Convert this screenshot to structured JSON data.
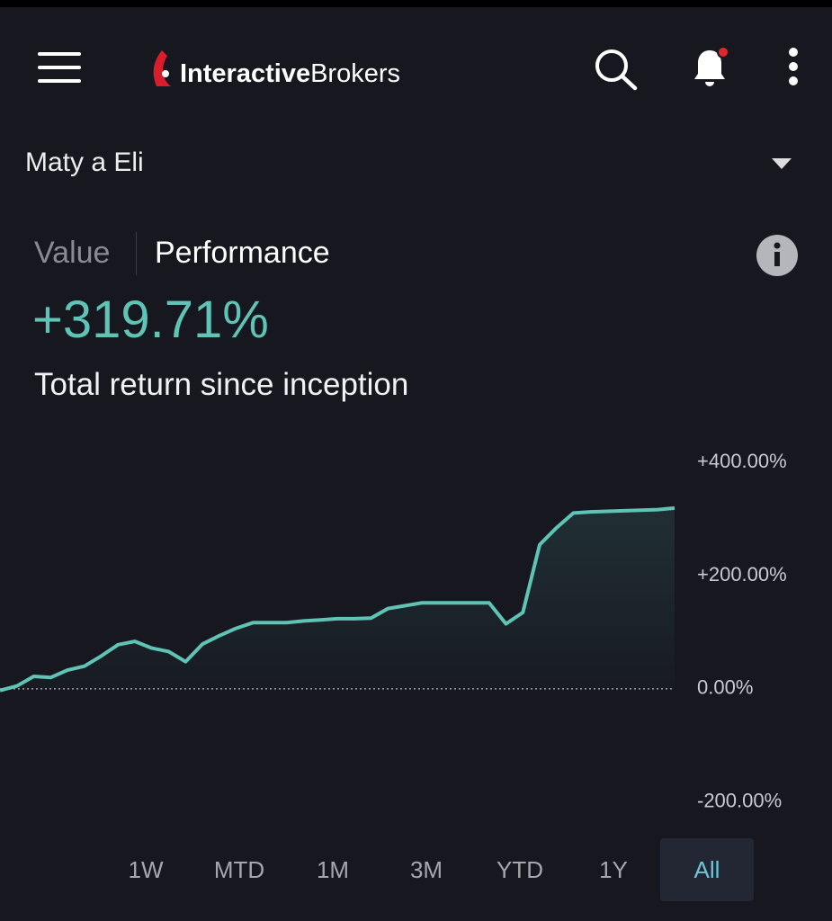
{
  "header": {
    "logo_bold": "Interactive",
    "logo_light": "Brokers"
  },
  "account": "Maty a Eli",
  "tabs": [
    "Value",
    "Performance"
  ],
  "selected_tab": 1,
  "headline_value": "+319.71%",
  "headline_caption": "Total return since inception",
  "chart_data": {
    "type": "line",
    "categories": [
      null,
      null,
      null,
      null,
      null,
      null,
      null,
      null,
      null,
      null,
      null,
      null,
      null,
      null,
      null,
      null,
      null,
      null,
      null,
      null,
      null,
      null,
      null,
      null,
      null,
      null,
      null,
      null,
      null,
      null,
      null,
      null,
      null,
      null,
      null,
      null,
      null,
      null,
      null,
      null,
      null
    ],
    "values": [
      -3,
      5,
      22,
      20,
      33,
      40,
      58,
      78,
      84,
      72,
      66,
      48,
      79,
      94,
      107,
      117,
      117,
      117,
      120,
      122,
      124,
      124,
      125,
      142,
      147,
      152,
      152,
      152,
      152,
      152,
      115,
      135,
      255,
      285,
      311,
      313,
      314,
      315,
      316,
      317,
      319.71
    ],
    "color": "#5fc3b6",
    "ylim": [
      -250,
      450
    ],
    "yticks": [
      {
        "value": 400,
        "label": "+400.00%"
      },
      {
        "value": 200,
        "label": "+200.00%"
      },
      {
        "value": 0,
        "label": "0.00%"
      },
      {
        "value": -200,
        "label": "-200.00%"
      }
    ],
    "zero_line": true,
    "area_fill": true
  },
  "ranges": [
    "1W",
    "MTD",
    "1M",
    "3M",
    "YTD",
    "1Y",
    "All"
  ],
  "selected_range": 6
}
